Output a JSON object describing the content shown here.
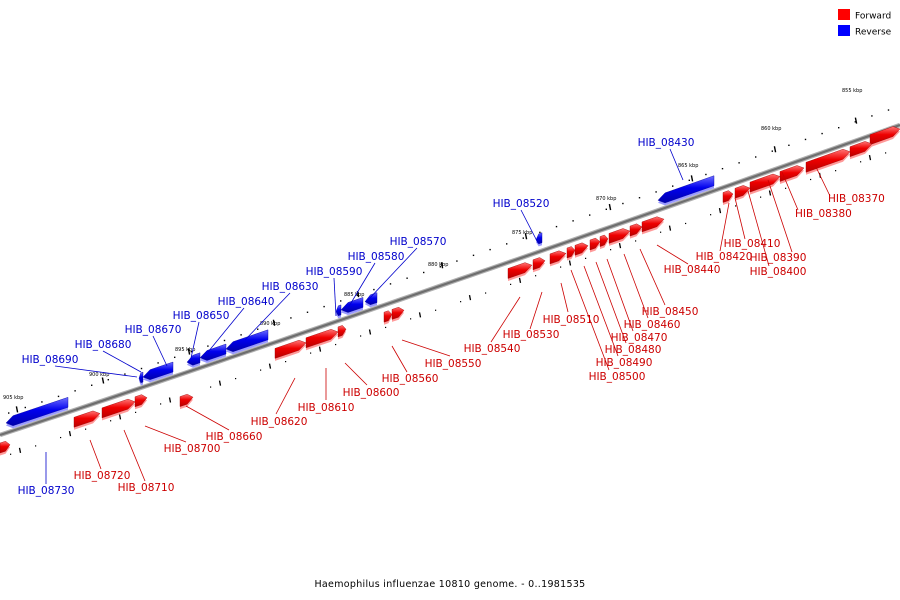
{
  "legend": [
    {
      "label": "Forward",
      "color": "#ff0000"
    },
    {
      "label": "Reverse",
      "color": "#0000ff"
    }
  ],
  "caption": "Haemophilus influenzae 10810 genome. - 0..1981535",
  "scale_labels": [
    "855 kbp",
    "860 kbp",
    "865 kbp",
    "870 kbp",
    "875 kbp",
    "880 kbp",
    "885 kbp",
    "890 kbp",
    "895 kbp",
    "900 kbp",
    "905 kbp"
  ],
  "genes_forward": [
    "HIB_08370",
    "HIB_08380",
    "HIB_08390",
    "HIB_08400",
    "HIB_08410",
    "HIB_08420",
    "HIB_08440",
    "HIB_08450",
    "HIB_08460",
    "HIB_08470",
    "HIB_08480",
    "HIB_08490",
    "HIB_08500",
    "HIB_08510",
    "HIB_08530",
    "HIB_08540",
    "HIB_08550",
    "HIB_08560",
    "HIB_08600",
    "HIB_08610",
    "HIB_08620",
    "HIB_08660",
    "HIB_08700",
    "HIB_08710",
    "HIB_08720"
  ],
  "genes_reverse": [
    "HIB_08430",
    "HIB_08520",
    "HIB_08570",
    "HIB_08580",
    "HIB_08590",
    "HIB_08630",
    "HIB_08640",
    "HIB_08650",
    "HIB_08670",
    "HIB_08680",
    "HIB_08690",
    "HIB_08730"
  ]
}
